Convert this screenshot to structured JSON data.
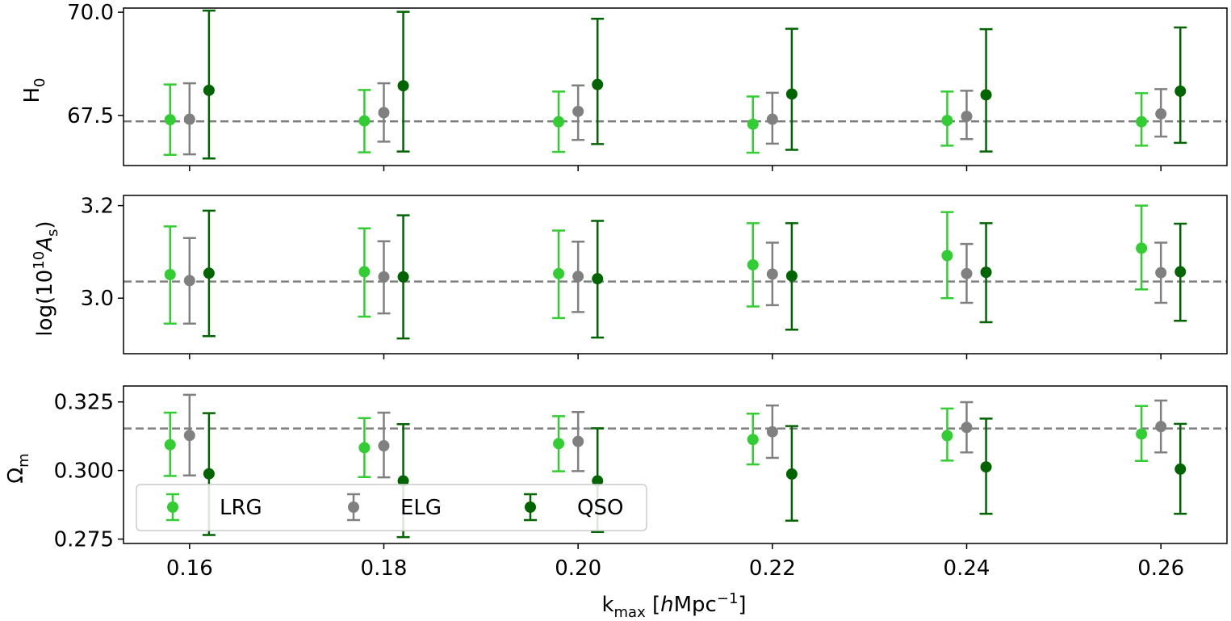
{
  "chart_data": {
    "type": "errorbar",
    "xlabel_main": "k",
    "xlabel_sub": "max",
    "xlabel_unit_pre": "[",
    "xlabel_unit_h": "h",
    "xlabel_unit_mid": "Mpc",
    "xlabel_unit_exp": "−1",
    "xlabel_unit_post": "]",
    "x_ticks": [
      0.16,
      0.18,
      0.2,
      0.22,
      0.24,
      0.26
    ],
    "x_tick_labels": [
      "0.16",
      "0.18",
      "0.20",
      "0.22",
      "0.24",
      "0.26"
    ],
    "xlim": [
      0.1532,
      0.2668
    ],
    "series_colors": {
      "LRG": "#32cd32",
      "ELG": "#808080",
      "QSO": "#006400"
    },
    "reference_line_color": "#808080",
    "legend": {
      "placement": "lower-left of bottom panel",
      "entries": [
        {
          "name": "LRG",
          "color": "#32cd32"
        },
        {
          "name": "ELG",
          "color": "#808080"
        },
        {
          "name": "QSO",
          "color": "#006400"
        }
      ]
    },
    "panels": [
      {
        "ylabel": "H",
        "ylabel_sub": "0",
        "ylim": [
          66.29,
          70.1
        ],
        "yticks": [
          67.5,
          70.0
        ],
        "ytick_labels": [
          "67.5",
          "70.0"
        ],
        "reference": 67.36,
        "series": [
          {
            "name": "LRG",
            "x": [
              0.158,
              0.178,
              0.198,
              0.218,
              0.238,
              0.258
            ],
            "y": [
              67.4,
              67.37,
              67.35,
              67.29,
              67.38,
              67.35
            ],
            "yerr_low": [
              66.55,
              66.61,
              66.62,
              66.6,
              66.77,
              66.77
            ],
            "yerr_high": [
              68.25,
              68.12,
              68.08,
              67.96,
              68.08,
              68.04
            ]
          },
          {
            "name": "ELG",
            "x": [
              0.16,
              0.18,
              0.2,
              0.22,
              0.24,
              0.26
            ],
            "y": [
              67.41,
              67.57,
              67.6,
              67.41,
              67.48,
              67.54
            ],
            "yerr_low": [
              66.56,
              66.87,
              66.91,
              66.82,
              66.93,
              66.99
            ],
            "yerr_high": [
              68.28,
              68.28,
              68.23,
              68.05,
              68.1,
              68.14
            ]
          },
          {
            "name": "QSO",
            "x": [
              0.162,
              0.182,
              0.202,
              0.222,
              0.242,
              0.262
            ],
            "y": [
              68.11,
              68.22,
              68.25,
              68.02,
              68.0,
              68.09
            ],
            "yerr_low": [
              66.46,
              66.63,
              66.81,
              66.67,
              66.63,
              66.84
            ],
            "yerr_high": [
              70.04,
              70.01,
              69.84,
              69.6,
              69.59,
              69.63
            ]
          }
        ]
      },
      {
        "ylabel_pre": "log(10",
        "ylabel_sup": "10",
        "ylabel_mid": "A",
        "ylabel_sub": "s",
        "ylabel_post": ")",
        "ylim": [
          2.88,
          3.222
        ],
        "yticks": [
          3.0,
          3.2
        ],
        "ytick_labels": [
          "3.0",
          "3.2"
        ],
        "reference": 3.036,
        "series": [
          {
            "name": "LRG",
            "x": [
              0.158,
              0.178,
              0.198,
              0.218,
              0.238,
              0.258
            ],
            "y": [
              3.051,
              3.057,
              3.053,
              3.072,
              3.092,
              3.108
            ],
            "yerr_low": [
              2.945,
              2.96,
              2.957,
              2.982,
              3.0,
              3.019
            ],
            "yerr_high": [
              3.155,
              3.151,
              3.146,
              3.162,
              3.186,
              3.2
            ]
          },
          {
            "name": "ELG",
            "x": [
              0.16,
              0.18,
              0.2,
              0.22,
              0.24,
              0.26
            ],
            "y": [
              3.038,
              3.046,
              3.047,
              3.052,
              3.053,
              3.055
            ],
            "yerr_low": [
              2.945,
              2.967,
              2.97,
              2.985,
              2.99,
              2.99
            ],
            "yerr_high": [
              3.13,
              3.123,
              3.122,
              3.12,
              3.117,
              3.12
            ]
          },
          {
            "name": "QSO",
            "x": [
              0.162,
              0.182,
              0.202,
              0.222,
              0.242,
              0.262
            ],
            "y": [
              3.054,
              3.046,
              3.042,
              3.048,
              3.056,
              3.057
            ],
            "yerr_low": [
              2.918,
              2.913,
              2.915,
              2.932,
              2.948,
              2.951
            ],
            "yerr_high": [
              3.189,
              3.179,
              3.167,
              3.162,
              3.162,
              3.161
            ]
          }
        ]
      },
      {
        "ylabel": "Ω",
        "ylabel_sub": "m",
        "ylim": [
          0.2734,
          0.3308
        ],
        "yticks": [
          0.275,
          0.3,
          0.325
        ],
        "ytick_labels": [
          "0.275",
          "0.300",
          "0.325"
        ],
        "reference": 0.3153,
        "series": [
          {
            "name": "LRG",
            "x": [
              0.158,
              0.178,
              0.198,
              0.218,
              0.238,
              0.258
            ],
            "y": [
              0.3094,
              0.3083,
              0.3098,
              0.3113,
              0.3127,
              0.3133
            ],
            "yerr_low": [
              0.298,
              0.2976,
              0.2997,
              0.3022,
              0.3036,
              0.3035
            ],
            "yerr_high": [
              0.3211,
              0.3191,
              0.3198,
              0.3207,
              0.3226,
              0.3235
            ]
          },
          {
            "name": "ELG",
            "x": [
              0.16,
              0.18,
              0.2,
              0.22,
              0.24,
              0.26
            ],
            "y": [
              0.3128,
              0.309,
              0.3106,
              0.3141,
              0.3157,
              0.316
            ],
            "yerr_low": [
              0.2982,
              0.2975,
              0.2998,
              0.3046,
              0.3066,
              0.3066
            ],
            "yerr_high": [
              0.3276,
              0.3211,
              0.3213,
              0.3237,
              0.3249,
              0.3255
            ]
          },
          {
            "name": "QSO",
            "x": [
              0.162,
              0.182,
              0.202,
              0.222,
              0.242,
              0.262
            ],
            "y": [
              0.2988,
              0.2962,
              0.2962,
              0.2987,
              0.3013,
              0.3005
            ],
            "yerr_low": [
              0.2765,
              0.2757,
              0.2776,
              0.2817,
              0.2842,
              0.2842
            ],
            "yerr_high": [
              0.3209,
              0.3169,
              0.3154,
              0.3162,
              0.3189,
              0.317
            ]
          }
        ]
      }
    ]
  }
}
